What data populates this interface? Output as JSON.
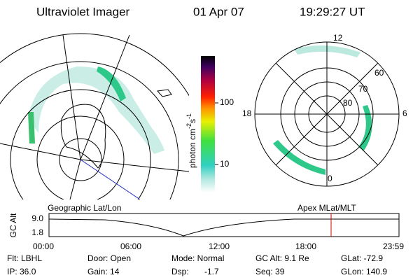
{
  "header": {
    "instrument": "Ultraviolet Imager",
    "date": "01 Apr 07",
    "time": "19:29:27 UT"
  },
  "colorbar": {
    "label": "photon cm",
    "exp1": "-2",
    "unit2": "s",
    "exp2": "-1",
    "ticks": [
      "100",
      "10"
    ]
  },
  "left_panel": {
    "label": "Geographic Lat/Lon"
  },
  "right_panel": {
    "label": "Apex MLat/MLT",
    "mlt": [
      "12",
      "18",
      "6",
      "0"
    ],
    "lat": [
      "60",
      "70",
      "80"
    ]
  },
  "altitude_plot": {
    "ylabel": "GC Alt",
    "yticks": [
      "9.0",
      "1.8"
    ],
    "xticks": [
      "00:00",
      "06:00",
      "12:00",
      "18:00",
      "23:59"
    ]
  },
  "info": {
    "rows": [
      [
        "Flt: LBHL",
        "Door: Open",
        "Mode: Normal",
        "GC Alt: 9.1 Re",
        "GLat: -72.9"
      ],
      [
        "IP: 36.0",
        "Gain: 14",
        "Dsp:",
        "Seq: 39",
        "GLon: 140.9"
      ]
    ],
    "dsp_value": "-1.7"
  }
}
